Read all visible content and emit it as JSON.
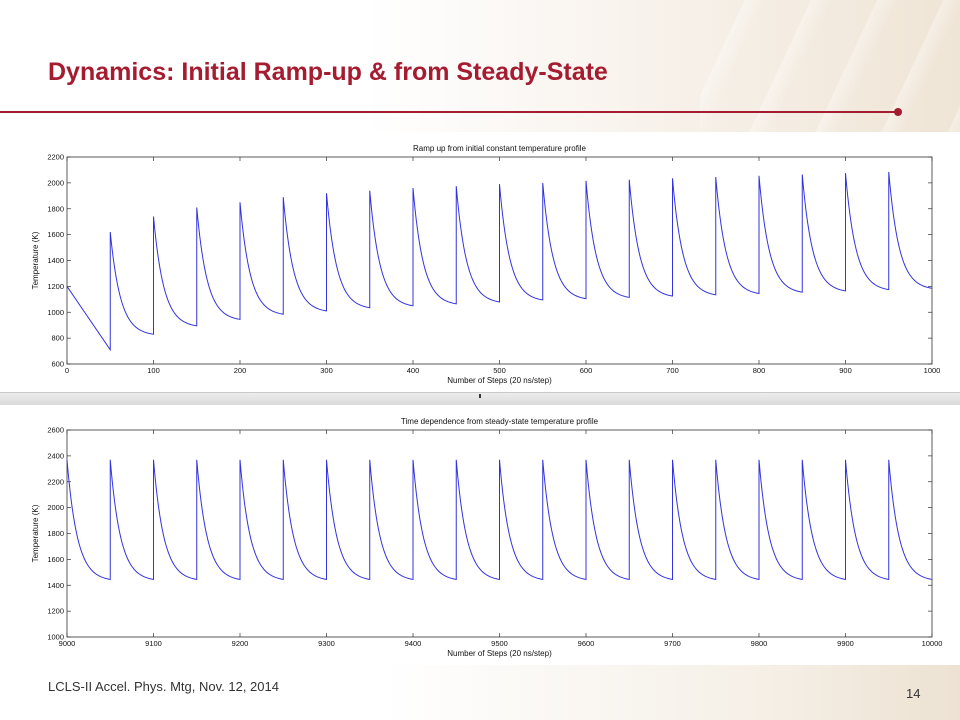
{
  "slide": {
    "title": "Dynamics: Initial Ramp-up & from Steady-State",
    "footer": "LCLS-II Accel. Phys. Mtg, Nov. 12, 2014",
    "page_number": "14",
    "accent_color": "#a51c30",
    "line_color": "#3333dd"
  },
  "chart_data": [
    {
      "type": "line",
      "title": "Ramp up from initial constant temperature profile",
      "xlabel": "Number of Steps (20 ns/step)",
      "ylabel": "Temperature (K)",
      "xlim": [
        0,
        1000
      ],
      "ylim": [
        600,
        2200
      ],
      "xticks": [
        0,
        100,
        200,
        300,
        400,
        500,
        600,
        700,
        800,
        900,
        1000
      ],
      "yticks": [
        600,
        800,
        1000,
        1200,
        1400,
        1600,
        1800,
        2000,
        2200
      ],
      "grid": false,
      "pulse_period": 50,
      "start_value": 1200,
      "peaks": [
        1620,
        1740,
        1810,
        1850,
        1890,
        1920,
        1940,
        1960,
        1975,
        1990,
        2000,
        2015,
        2025,
        2035,
        2045,
        2055,
        2065,
        2075,
        2085
      ],
      "troughs": [
        710,
        830,
        895,
        945,
        985,
        1010,
        1035,
        1050,
        1065,
        1080,
        1095,
        1105,
        1115,
        1125,
        1135,
        1145,
        1155,
        1165,
        1175,
        1185
      ],
      "end_value": 1185
    },
    {
      "type": "line",
      "title": "Time dependence from steady-state temperature profile",
      "xlabel": "Number of Steps (20 ns/step)",
      "ylabel": "Temperature (K)",
      "xlim": [
        9000,
        10000
      ],
      "ylim": [
        1000,
        2600
      ],
      "xticks": [
        9000,
        9100,
        9200,
        9300,
        9400,
        9500,
        9600,
        9700,
        9800,
        9900,
        10000
      ],
      "yticks": [
        1000,
        1200,
        1400,
        1600,
        1800,
        2000,
        2200,
        2400,
        2600
      ],
      "grid": false,
      "pulse_period": 50,
      "start_value": 2370,
      "peak": 2370,
      "trough": 1445,
      "end_value": 1445
    }
  ]
}
